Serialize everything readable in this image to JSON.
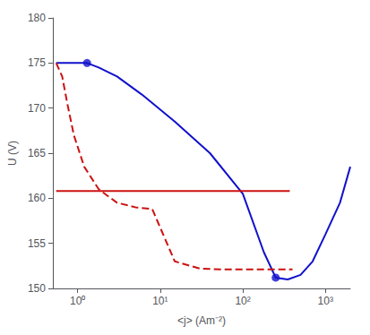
{
  "chart_data": {
    "type": "line",
    "xlabel": "<j> (Am⁻²)",
    "ylabel": "U (V)",
    "log": "x",
    "grid": false,
    "xlim": [
      0.5,
      2000
    ],
    "xticks": [
      {
        "value": 1,
        "label": "10⁰"
      },
      {
        "value": 10,
        "label": "10¹"
      },
      {
        "value": 100,
        "label": "10²"
      },
      {
        "value": 1000,
        "label": "10³"
      }
    ],
    "ylim": [
      150,
      180
    ],
    "yticks": [
      150,
      155,
      160,
      165,
      170,
      175,
      180
    ],
    "series": [
      {
        "type": "line",
        "color": "#1111cc",
        "line_style": "solid",
        "x": [
          0.55,
          0.7,
          1.0,
          1.3,
          1.8,
          3.0,
          6.0,
          15.0,
          40.0,
          100.0,
          180.0,
          250.0,
          350.0,
          500.0,
          700.0,
          1000.0,
          1500.0,
          2000.0
        ],
        "values": [
          175.0,
          175.0,
          175.0,
          175.0,
          174.5,
          173.5,
          171.5,
          168.5,
          165.0,
          160.5,
          154.0,
          151.2,
          151.0,
          151.5,
          153.0,
          156.0,
          159.5,
          163.5
        ]
      },
      {
        "type": "line",
        "color": "#cc1111",
        "line_style": "dashed",
        "x": [
          0.55,
          0.65,
          0.75,
          0.9,
          1.2,
          1.8,
          3.0,
          5.0,
          8.0,
          15.0,
          30.0,
          60.0,
          100.0,
          200.0,
          400.0
        ],
        "values": [
          175.0,
          173.5,
          170.5,
          167.0,
          163.5,
          161.0,
          159.5,
          159.0,
          158.8,
          153.0,
          152.2,
          152.1,
          152.1,
          152.1,
          152.1
        ]
      },
      {
        "type": "line",
        "color": "#cc1111",
        "line_style": "solid",
        "x": [
          0.55,
          370
        ],
        "values": [
          160.8,
          160.8
        ]
      },
      {
        "type": "scatter",
        "color": "#1111cc",
        "marker": "circle",
        "x": [
          1.3,
          250
        ],
        "values": [
          175.0,
          151.2
        ]
      }
    ]
  }
}
